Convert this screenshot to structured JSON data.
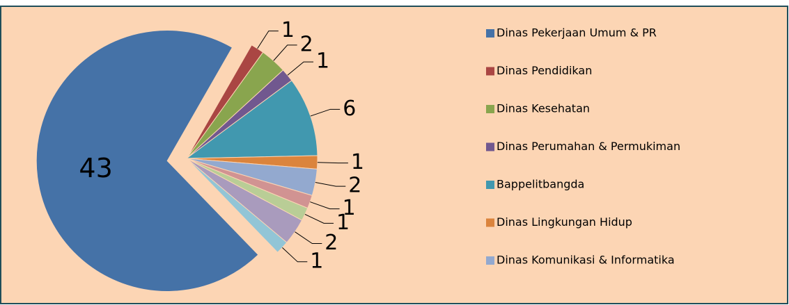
{
  "chart_data": {
    "type": "pie",
    "categories": [
      "Dinas Pekerjaan Umum & PR",
      "Dinas Pendidikan",
      "Dinas Kesehatan",
      "Dinas Perumahan & Permukiman",
      "Bappelitbangda",
      "Dinas Lingkungan Hidup",
      "Dinas Komunikasi & Informatika",
      null,
      null,
      null,
      null
    ],
    "values": [
      43,
      1,
      2,
      1,
      6,
      1,
      2,
      1,
      1,
      2,
      1
    ],
    "colors": [
      "#4572a7",
      "#aa4643",
      "#89a54e",
      "#71588f",
      "#4198af",
      "#db843d",
      "#93a9cf",
      "#d19392",
      "#b9cd96",
      "#a99bbd",
      "#92c5d6"
    ]
  }
}
